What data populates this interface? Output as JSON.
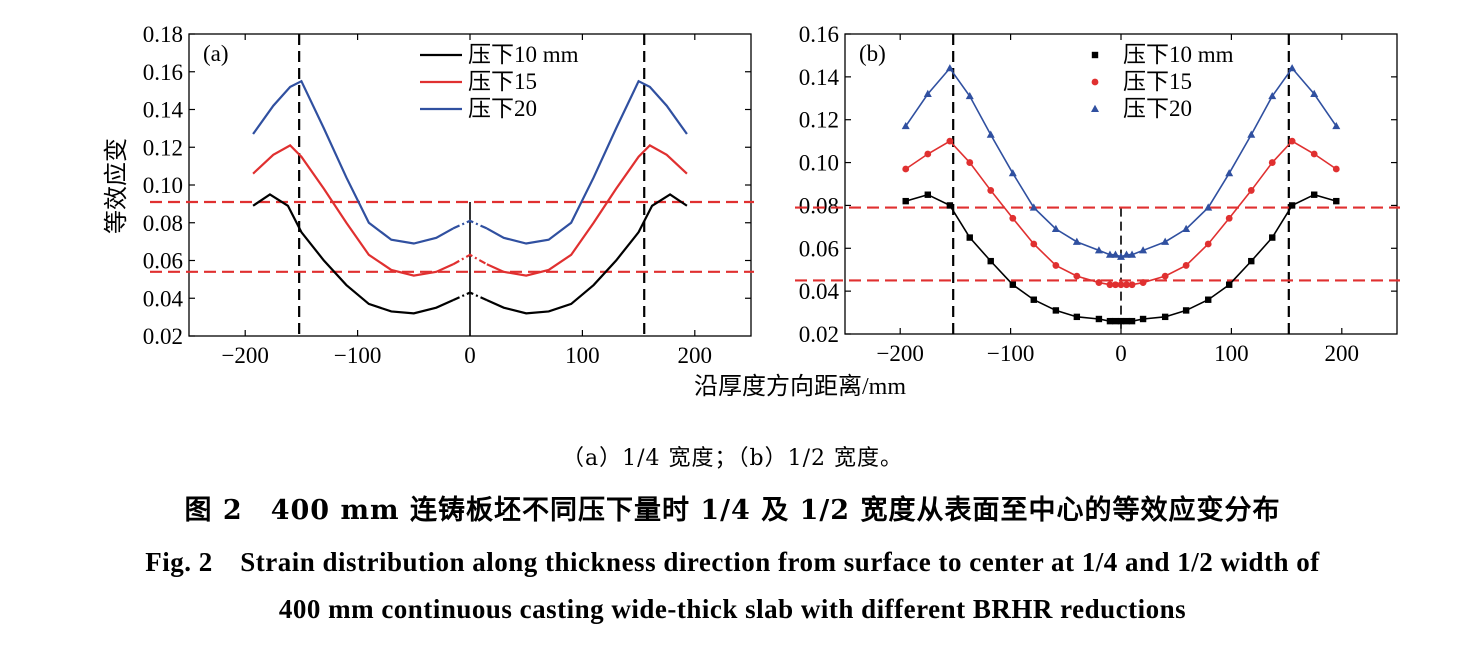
{
  "figure": {
    "x_label": "沿厚度方向距离/mm",
    "y_label": "等效应变",
    "subcaption": "（a）1/4 宽度；（b）1/2 宽度。",
    "caption_cn": "图 2　400 mm 连铸板坯不同压下量时 1/4 及 1/2 宽度从表面至中心的等效应变分布",
    "caption_en_line1": "Fig. 2　Strain distribution along thickness direction from surface to center at 1/4 and 1/2 width of",
    "caption_en_line2": "400 mm continuous casting wide-thick slab with different BRHR reductions"
  },
  "chart_data": [
    {
      "type": "line",
      "panel_label": "(a)",
      "xlim": [
        -250,
        250
      ],
      "ylim": [
        0.02,
        0.18
      ],
      "xticks": [
        -200,
        -100,
        0,
        100,
        200
      ],
      "yticks": [
        0.02,
        0.04,
        0.06,
        0.08,
        0.1,
        0.12,
        0.14,
        0.16,
        0.18
      ],
      "xtick_labels": [
        "−200",
        "−100",
        "0",
        "100",
        "200"
      ],
      "ytick_labels": [
        "0.02",
        "0.04",
        "0.06",
        "0.08",
        "0.10",
        "0.12",
        "0.14",
        "0.16",
        "0.18"
      ],
      "legend_position": "top-center",
      "vlines": [
        -152,
        155
      ],
      "hlines": [
        0.091,
        0.054
      ],
      "center_line": 0,
      "series": [
        {
          "name": "压下10 mm",
          "color": "#000000",
          "x": [
            -193,
            -178,
            -162,
            -150,
            -130,
            -110,
            -90,
            -70,
            -50,
            -30,
            -15
          ],
          "y": [
            0.089,
            0.095,
            0.089,
            0.075,
            0.06,
            0.047,
            0.037,
            0.033,
            0.032,
            0.035,
            0.039
          ],
          "dashed_x": [
            -15,
            0,
            15
          ],
          "dashed_y": [
            0.039,
            0.043,
            0.039
          ]
        },
        {
          "name": "压下15",
          "color": "#e03030",
          "x": [
            -193,
            -175,
            -160,
            -150,
            -130,
            -110,
            -90,
            -70,
            -50,
            -30,
            -15
          ],
          "y": [
            0.106,
            0.116,
            0.121,
            0.115,
            0.098,
            0.08,
            0.063,
            0.055,
            0.052,
            0.054,
            0.058
          ],
          "dashed_x": [
            -15,
            0,
            15
          ],
          "dashed_y": [
            0.058,
            0.063,
            0.058
          ]
        },
        {
          "name": "压下20",
          "color": "#3050a0",
          "x": [
            -193,
            -175,
            -160,
            -150,
            -130,
            -110,
            -90,
            -70,
            -50,
            -30,
            -15
          ],
          "y": [
            0.127,
            0.142,
            0.152,
            0.155,
            0.13,
            0.104,
            0.08,
            0.071,
            0.069,
            0.072,
            0.077
          ],
          "dashed_x": [
            -15,
            0,
            15
          ],
          "dashed_y": [
            0.077,
            0.081,
            0.077
          ]
        }
      ]
    },
    {
      "type": "line",
      "panel_label": "(b)",
      "xlim": [
        -250,
        250
      ],
      "ylim": [
        0.02,
        0.16
      ],
      "xticks": [
        -200,
        -100,
        0,
        100,
        200
      ],
      "yticks": [
        0.02,
        0.04,
        0.06,
        0.08,
        0.1,
        0.12,
        0.14,
        0.16
      ],
      "xtick_labels": [
        "−200",
        "−100",
        "0",
        "100",
        "200"
      ],
      "ytick_labels": [
        "0.02",
        "0.04",
        "0.06",
        "0.08",
        "0.10",
        "0.12",
        "0.14",
        "0.16"
      ],
      "legend_position": "top-center",
      "vlines": [
        -152,
        152
      ],
      "hlines": [
        0.079,
        0.045
      ],
      "center_line": 0,
      "series": [
        {
          "name": "压下10 mm",
          "color": "#000000",
          "marker": "square",
          "x": [
            -195,
            -175,
            -155,
            -137,
            -118,
            -98,
            -79,
            -59,
            -40,
            -20,
            -10,
            -5,
            0,
            5,
            10,
            20,
            40,
            59,
            79,
            98,
            118,
            137,
            155,
            175,
            195
          ],
          "y": [
            0.082,
            0.085,
            0.08,
            0.065,
            0.054,
            0.043,
            0.036,
            0.031,
            0.028,
            0.027,
            0.026,
            0.026,
            0.026,
            0.026,
            0.026,
            0.027,
            0.028,
            0.031,
            0.036,
            0.043,
            0.054,
            0.065,
            0.08,
            0.085,
            0.082
          ]
        },
        {
          "name": "压下15",
          "color": "#e03030",
          "marker": "circle",
          "x": [
            -195,
            -175,
            -155,
            -137,
            -118,
            -98,
            -79,
            -59,
            -40,
            -20,
            -10,
            -5,
            0,
            5,
            10,
            20,
            40,
            59,
            79,
            98,
            118,
            137,
            155,
            175,
            195
          ],
          "y": [
            0.097,
            0.104,
            0.11,
            0.1,
            0.087,
            0.074,
            0.062,
            0.052,
            0.047,
            0.044,
            0.043,
            0.043,
            0.043,
            0.043,
            0.043,
            0.044,
            0.047,
            0.052,
            0.062,
            0.074,
            0.087,
            0.1,
            0.11,
            0.104,
            0.097
          ]
        },
        {
          "name": "压下20",
          "color": "#3050a0",
          "marker": "triangle",
          "x": [
            -195,
            -175,
            -155,
            -137,
            -118,
            -98,
            -79,
            -59,
            -40,
            -20,
            -10,
            -5,
            0,
            5,
            10,
            20,
            40,
            59,
            79,
            98,
            118,
            137,
            155,
            175,
            195
          ],
          "y": [
            0.117,
            0.132,
            0.144,
            0.131,
            0.113,
            0.095,
            0.079,
            0.069,
            0.063,
            0.059,
            0.057,
            0.057,
            0.056,
            0.057,
            0.057,
            0.059,
            0.063,
            0.069,
            0.079,
            0.095,
            0.113,
            0.131,
            0.144,
            0.132,
            0.117
          ]
        }
      ]
    }
  ]
}
